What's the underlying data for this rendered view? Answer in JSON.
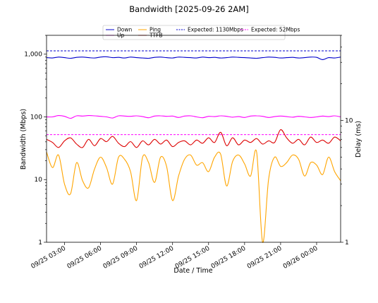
{
  "chart_data": {
    "type": "line",
    "title": "Bandwidth [2025-09-26 2AM]",
    "xlabel": "Date / Time",
    "ylabel_left": "Bandwidth (Mbps)",
    "ylabel_right": "Delay (ms)",
    "x_start": "2025-09-25 01:30",
    "x_end": "2025-09-26 02:00",
    "x_ticks": [
      "09/25 03:00",
      "09/25 06:00",
      "09/25 09:00",
      "09/25 12:00",
      "09/25 15:00",
      "09/25 18:00",
      "09/25 21:00",
      "09/26 00:00"
    ],
    "x_tick_times": [
      "2025-09-25 03:00",
      "2025-09-25 06:00",
      "2025-09-25 09:00",
      "2025-09-25 12:00",
      "2025-09-25 15:00",
      "2025-09-25 18:00",
      "2025-09-25 21:00",
      "2025-09-26 00:00"
    ],
    "y_left": {
      "scale": "log",
      "range": [
        1,
        2000
      ],
      "ticks": [
        1,
        10,
        100,
        1000
      ],
      "tick_labels": [
        "1",
        "10",
        "100",
        "1,000"
      ]
    },
    "y_right": {
      "scale": "log",
      "range": [
        1,
        50
      ],
      "ticks": [
        1,
        10
      ],
      "tick_labels": [
        "1",
        "10"
      ]
    },
    "legend_placement": "top-center",
    "colors": {
      "down": "#0000cc",
      "up": "#ff00ff",
      "ping": "#ffa500",
      "ttfb": "#dd0000"
    },
    "legend": [
      {
        "label": "Down",
        "color": "#0000cc",
        "style": "solid"
      },
      {
        "label": "Up",
        "color": "#ff00ff",
        "style": "solid"
      },
      {
        "label": "Ping",
        "color": "#ffa500",
        "style": "solid"
      },
      {
        "label": "TTFB",
        "color": "#dd0000",
        "style": "solid"
      },
      {
        "label": "Expected: 1130Mbps",
        "color": "#0000cc",
        "style": "dashed"
      },
      {
        "label": "Expected: 52Mbps",
        "color": "#ff00ff",
        "style": "dashed"
      }
    ],
    "reference_lines": [
      {
        "name": "Expected: 1130Mbps",
        "axis": "left",
        "value": 1130
      },
      {
        "name": "Expected: 52Mbps",
        "axis": "left",
        "value": 52
      }
    ],
    "sample_interval_hours": 0.5,
    "series": [
      {
        "name": "Down",
        "axis": "left",
        "values": [
          880,
          870,
          900,
          880,
          860,
          890,
          900,
          880,
          870,
          900,
          910,
          880,
          890,
          870,
          900,
          880,
          870,
          860,
          890,
          900,
          880,
          870,
          900,
          890,
          880,
          870,
          900,
          880,
          890,
          870,
          880,
          900,
          890,
          880,
          870,
          860,
          880,
          900,
          890,
          870,
          880,
          890,
          870,
          880,
          900,
          890,
          820,
          880,
          870,
          900
        ]
      },
      {
        "name": "Up",
        "axis": "left",
        "values": [
          100,
          100,
          105,
          102,
          95,
          104,
          103,
          105,
          104,
          102,
          100,
          96,
          104,
          103,
          102,
          104,
          101,
          97,
          103,
          104,
          102,
          103,
          98,
          103,
          104,
          100,
          97,
          102,
          101,
          104,
          102,
          99,
          101,
          98,
          103,
          104,
          102,
          98,
          101,
          103,
          101,
          99,
          102,
          100,
          98,
          100,
          103,
          101,
          104,
          100
        ]
      },
      {
        "name": "Ping",
        "axis": "right",
        "values": [
          5.5,
          4.1,
          5.2,
          3.0,
          2.5,
          4.5,
          3.2,
          2.8,
          4.0,
          5.0,
          4.1,
          3.0,
          5.0,
          4.8,
          3.8,
          2.2,
          5.0,
          4.5,
          3.1,
          5.0,
          4.2,
          2.2,
          3.5,
          4.8,
          5.2,
          4.3,
          4.5,
          3.8,
          5.0,
          5.3,
          2.9,
          4.6,
          5.2,
          4.4,
          3.5,
          5.5,
          1.0,
          3.3,
          5.0,
          4.2,
          4.5,
          5.2,
          4.8,
          3.5,
          4.5,
          4.3,
          3.6,
          5.0,
          3.8,
          3.2
        ]
      },
      {
        "name": "TTFB",
        "axis": "right",
        "values": [
          7.0,
          6.6,
          6.0,
          6.8,
          7.2,
          6.4,
          6.0,
          7.0,
          6.2,
          7.1,
          6.7,
          7.4,
          6.5,
          6.1,
          6.7,
          6.0,
          6.8,
          6.3,
          7.0,
          6.4,
          6.9,
          6.1,
          6.6,
          6.8,
          6.3,
          6.9,
          6.5,
          7.2,
          6.6,
          8.0,
          6.2,
          7.2,
          6.3,
          6.9,
          6.6,
          7.1,
          6.4,
          6.8,
          6.6,
          8.4,
          7.2,
          6.5,
          7.0,
          6.3,
          7.3,
          6.6,
          6.9,
          6.5,
          7.3,
          6.8
        ]
      }
    ]
  }
}
